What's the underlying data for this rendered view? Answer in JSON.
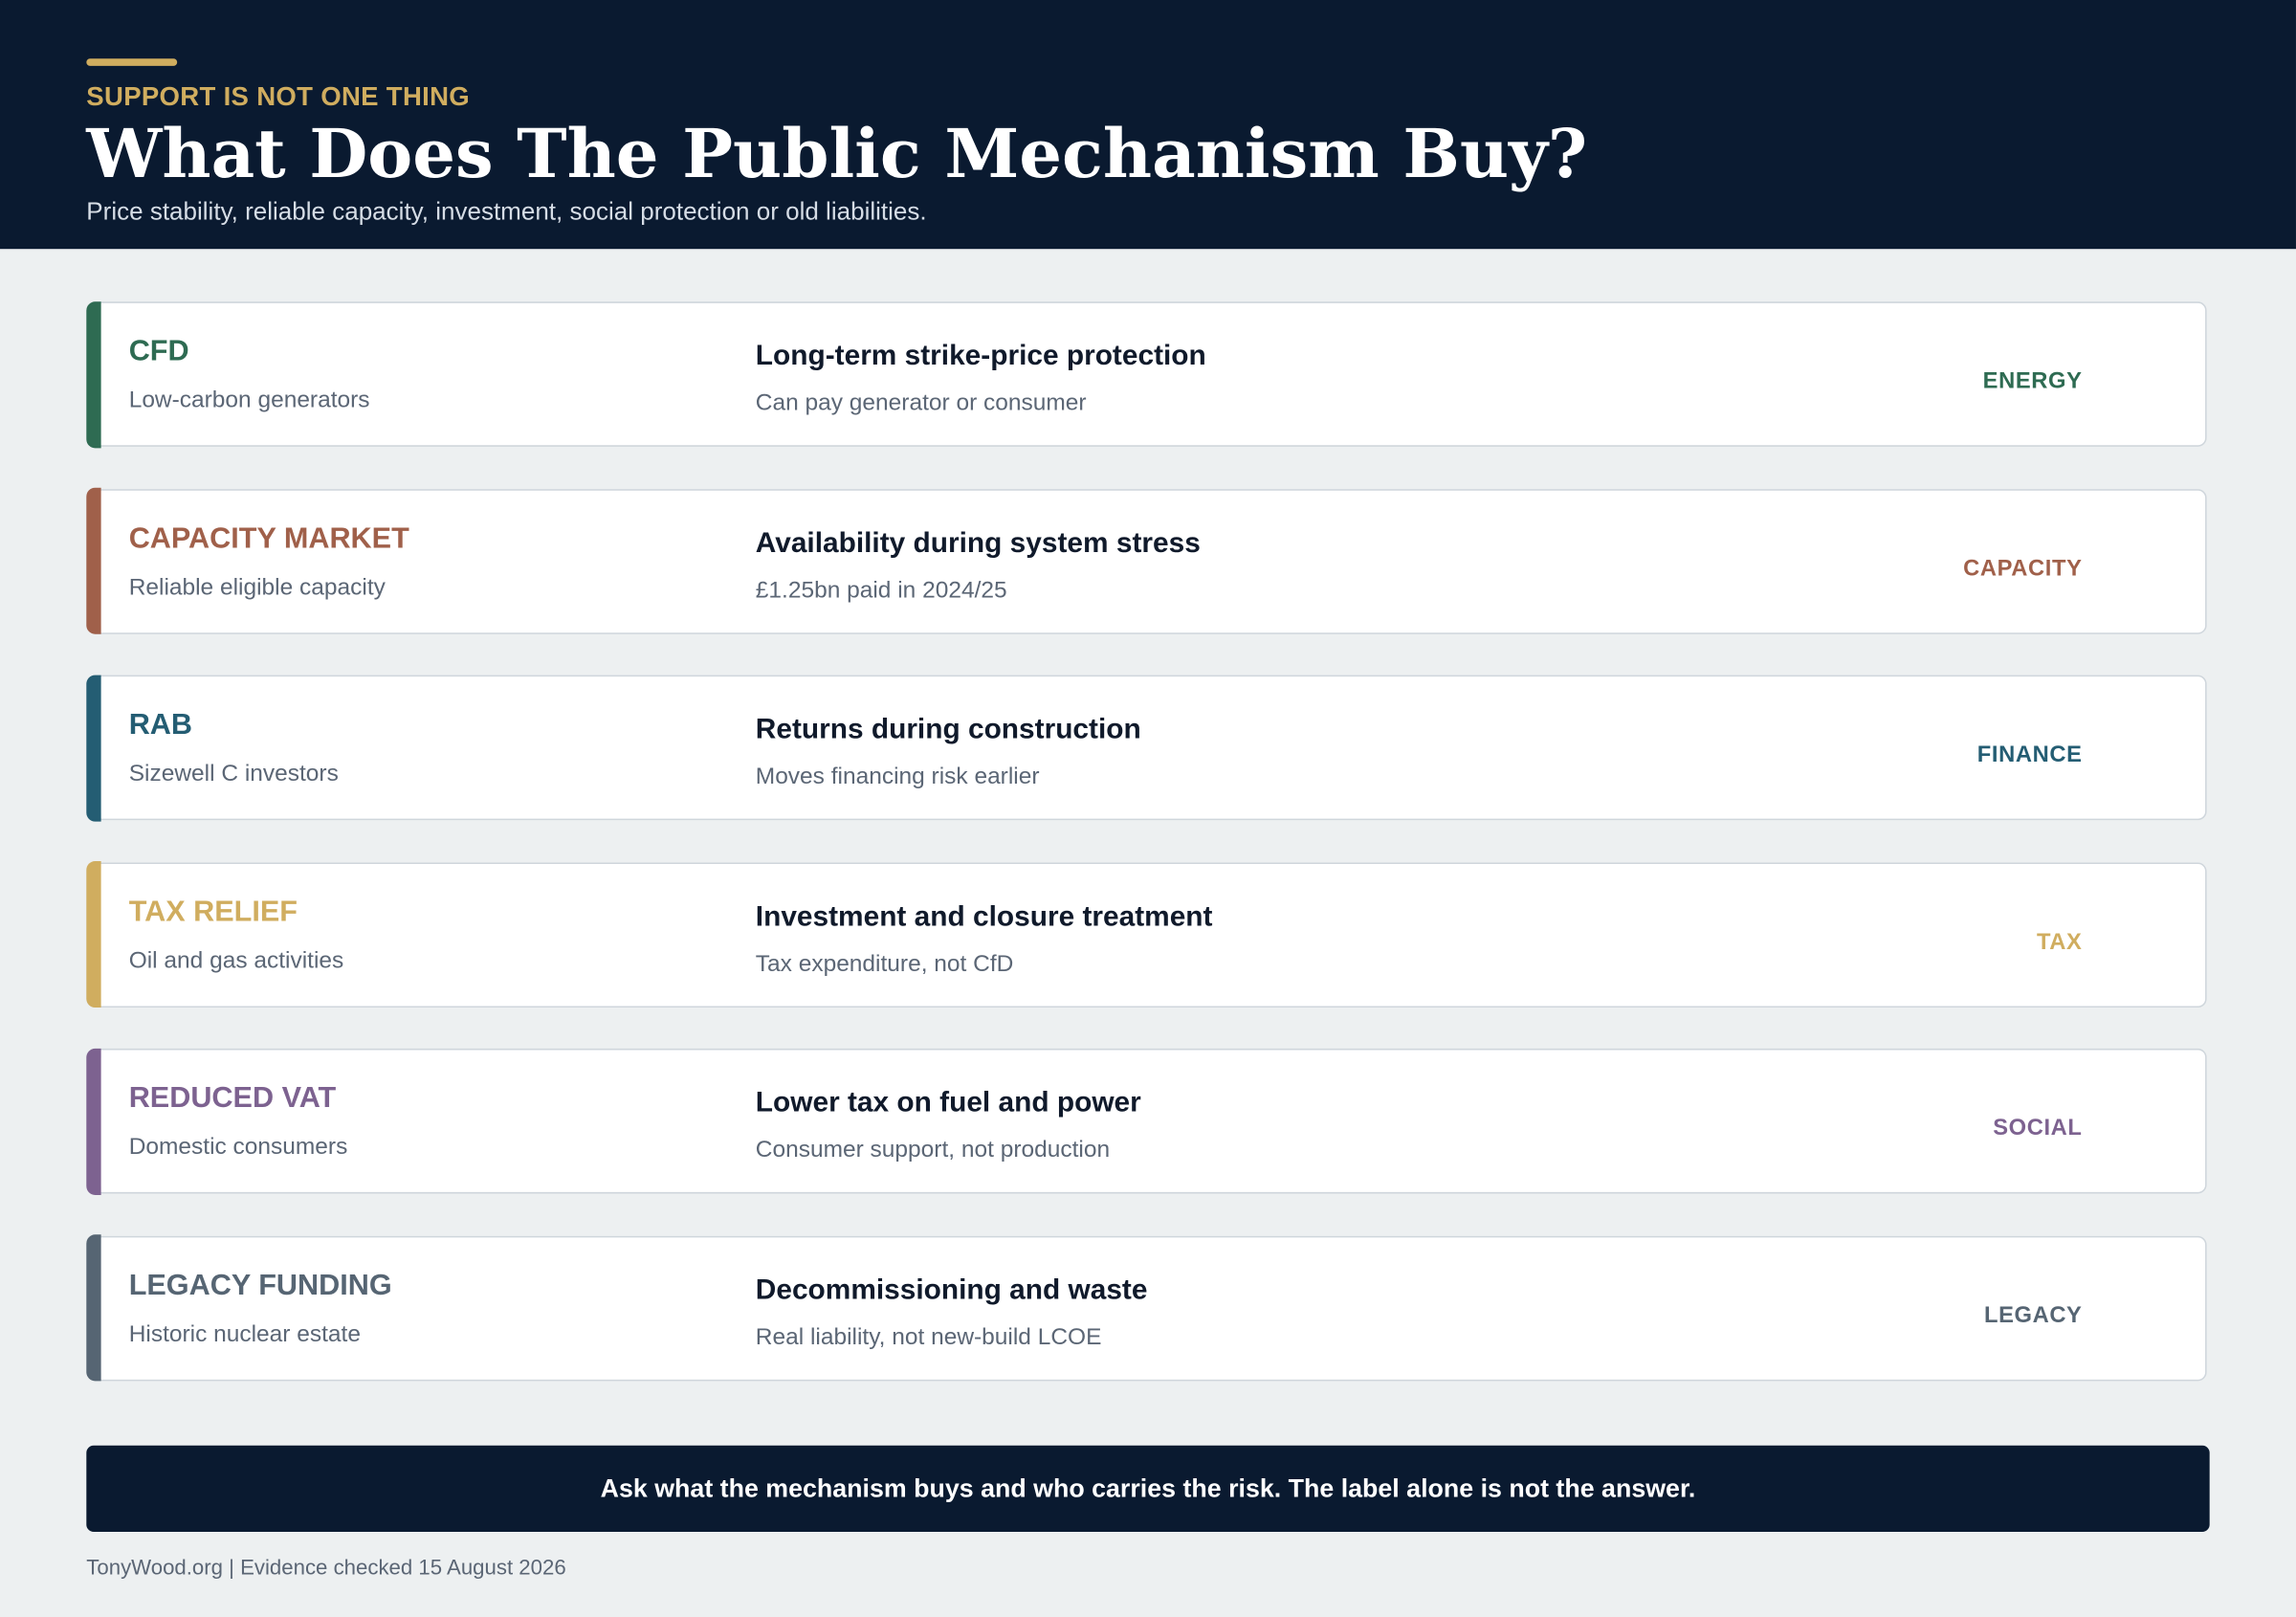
{
  "header": {
    "kicker": "SUPPORT IS NOT ONE THING",
    "title": "What Does The Public Mechanism Buy?",
    "subtitle": "Price stability, reliable capacity, investment, social protection or old liabilities."
  },
  "rows": [
    {
      "name": "CFD",
      "audience": "Low-carbon generators",
      "buys": "Long-term strike-price protection",
      "note": "Can pay generator or consumer",
      "tag": "ENERGY"
    },
    {
      "name": "CAPACITY MARKET",
      "audience": "Reliable eligible capacity",
      "buys": "Availability during system stress",
      "note": "£1.25bn paid in 2024/25",
      "tag": "CAPACITY"
    },
    {
      "name": "RAB",
      "audience": "Sizewell C investors",
      "buys": "Returns during construction",
      "note": "Moves financing risk earlier",
      "tag": "FINANCE"
    },
    {
      "name": "TAX RELIEF",
      "audience": "Oil and gas activities",
      "buys": "Investment and closure treatment",
      "note": "Tax expenditure, not CfD",
      "tag": "TAX"
    },
    {
      "name": "REDUCED VAT",
      "audience": "Domestic consumers",
      "buys": "Lower tax on fuel and power",
      "note": "Consumer support, not production",
      "tag": "SOCIAL"
    },
    {
      "name": "LEGACY FUNDING",
      "audience": "Historic nuclear estate",
      "buys": "Decommissioning and waste",
      "note": "Real liability, not new-build LCOE",
      "tag": "LEGACY"
    }
  ],
  "footer": {
    "banner": "Ask what the mechanism buys and who carries the risk. The label alone is not the answer.",
    "source": "TonyWood.org | Evidence checked 15 August 2026"
  }
}
